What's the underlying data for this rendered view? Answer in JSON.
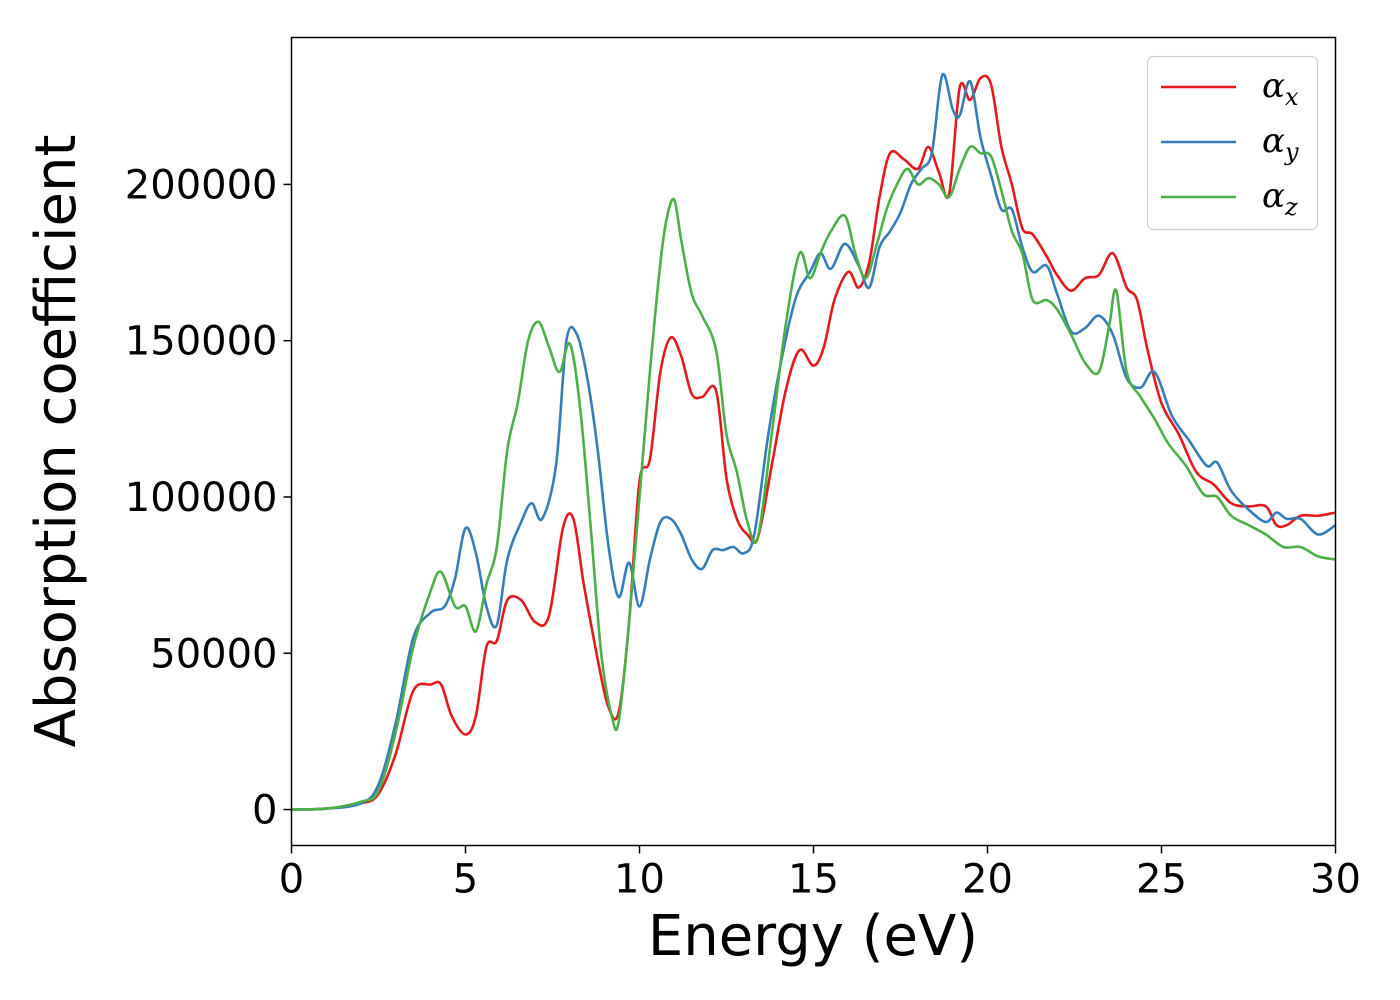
{
  "chart_data": {
    "type": "line",
    "title": "",
    "xlabel": "Energy (eV)",
    "ylabel": "Absorption coefficient",
    "xlim": [
      0,
      30
    ],
    "ylim": [
      -11500,
      247000
    ],
    "xticks": [
      0,
      5,
      10,
      15,
      20,
      25,
      30
    ],
    "yticks": [
      0,
      50000,
      100000,
      150000,
      200000
    ],
    "grid": false,
    "legend_position": "top-right",
    "series": [
      {
        "name": "α",
        "subscript": "x",
        "color": "#e41a1c",
        "x": [
          0,
          1,
          2,
          2.5,
          3,
          3.5,
          4,
          4.3,
          4.6,
          5,
          5.3,
          5.6,
          5.9,
          6.2,
          6.6,
          7,
          7.4,
          7.8,
          8.1,
          8.4,
          8.8,
          9.1,
          9.4,
          9.7,
          10,
          10.3,
          10.6,
          10.9,
          11.2,
          11.5,
          11.8,
          12.2,
          12.5,
          12.8,
          13.1,
          13.4,
          13.8,
          14.2,
          14.6,
          15,
          15.3,
          15.6,
          16,
          16.3,
          16.6,
          16.9,
          17.2,
          17.6,
          18,
          18.3,
          18.6,
          18.9,
          19.2,
          19.5,
          19.8,
          20.1,
          20.4,
          20.7,
          21,
          21.3,
          21.7,
          22,
          22.4,
          22.8,
          23.2,
          23.6,
          24,
          24.3,
          24.6,
          25,
          25.5,
          26,
          26.5,
          27,
          27.5,
          28,
          28.3,
          28.6,
          29,
          29.5,
          30
        ],
        "y": [
          0,
          300,
          2000,
          5000,
          18000,
          38000,
          40000,
          40000,
          30000,
          24000,
          30000,
          52000,
          54000,
          67000,
          67000,
          60000,
          62000,
          90000,
          93000,
          72000,
          48000,
          33000,
          31000,
          60000,
          105000,
          112000,
          140000,
          151000,
          145000,
          133000,
          132000,
          134000,
          106000,
          93000,
          88000,
          87000,
          110000,
          134000,
          147000,
          142000,
          148000,
          163000,
          172000,
          167000,
          175000,
          196000,
          210000,
          208000,
          205000,
          212000,
          204000,
          197000,
          231000,
          227000,
          234000,
          232000,
          212000,
          200000,
          186000,
          184000,
          177000,
          171000,
          166000,
          170000,
          171000,
          178000,
          167000,
          163000,
          147000,
          130000,
          120000,
          108000,
          104000,
          98000,
          97000,
          97000,
          91000,
          91000,
          94000,
          94000,
          95000
        ]
      },
      {
        "name": "α",
        "subscript": "y",
        "color": "#377eb8",
        "x": [
          0,
          1,
          2,
          2.5,
          3,
          3.5,
          4,
          4.4,
          4.7,
          5,
          5.3,
          5.6,
          5.9,
          6.2,
          6.6,
          6.9,
          7.2,
          7.6,
          7.9,
          8.2,
          8.5,
          8.8,
          9.1,
          9.4,
          9.7,
          10,
          10.3,
          10.6,
          10.9,
          11.2,
          11.5,
          11.8,
          12.1,
          12.4,
          12.7,
          13,
          13.3,
          13.7,
          14.1,
          14.5,
          14.9,
          15.2,
          15.5,
          15.9,
          16.3,
          16.6,
          16.9,
          17.2,
          17.5,
          17.8,
          18.1,
          18.4,
          18.7,
          19,
          19.2,
          19.5,
          19.8,
          20.1,
          20.4,
          20.7,
          21,
          21.3,
          21.7,
          22,
          22.4,
          22.8,
          23.2,
          23.6,
          24,
          24.4,
          24.8,
          25.3,
          25.8,
          26.3,
          26.6,
          27,
          27.5,
          28,
          28.3,
          28.6,
          29,
          29.5,
          30
        ],
        "y": [
          0,
          300,
          2000,
          8000,
          28000,
          55000,
          63000,
          65000,
          74000,
          90000,
          82000,
          65000,
          59000,
          80000,
          92000,
          98000,
          93000,
          110000,
          150000,
          152000,
          138000,
          115000,
          85000,
          68000,
          79000,
          65000,
          80000,
          92000,
          93000,
          88000,
          80000,
          77000,
          83000,
          83000,
          84000,
          82000,
          88000,
          120000,
          145000,
          164000,
          172000,
          178000,
          173000,
          181000,
          174000,
          167000,
          180000,
          185000,
          191000,
          200000,
          205000,
          210000,
          235000,
          224000,
          222000,
          233000,
          215000,
          203000,
          192000,
          192000,
          180000,
          172000,
          174000,
          165000,
          153000,
          154000,
          158000,
          152000,
          138000,
          135000,
          140000,
          126000,
          118000,
          110000,
          111000,
          102000,
          96000,
          92000,
          95000,
          93000,
          93000,
          88000,
          91000
        ]
      },
      {
        "name": "α",
        "subscript": "z",
        "color": "#4daf4a",
        "x": [
          0,
          1,
          2,
          2.5,
          3,
          3.5,
          4,
          4.3,
          4.7,
          5,
          5.3,
          5.6,
          5.9,
          6.2,
          6.5,
          6.8,
          7.1,
          7.4,
          7.7,
          8,
          8.3,
          8.6,
          8.9,
          9.2,
          9.4,
          9.7,
          10,
          10.3,
          10.6,
          10.8,
          11,
          11.2,
          11.5,
          11.8,
          12.2,
          12.5,
          12.8,
          13.1,
          13.4,
          13.8,
          14.2,
          14.6,
          14.9,
          15.2,
          15.5,
          15.9,
          16.2,
          16.5,
          16.8,
          17.1,
          17.4,
          17.7,
          18,
          18.3,
          18.6,
          18.9,
          19.2,
          19.5,
          19.8,
          20.1,
          20.4,
          20.7,
          21,
          21.3,
          21.7,
          22,
          22.4,
          22.8,
          23.2,
          23.5,
          23.7,
          24,
          24.4,
          24.8,
          25.2,
          25.7,
          26.2,
          26.6,
          27,
          27.5,
          28,
          28.5,
          29,
          29.5,
          30
        ],
        "y": [
          0,
          300,
          2500,
          6000,
          25000,
          52000,
          70000,
          76000,
          65000,
          65000,
          57000,
          72000,
          84000,
          115000,
          130000,
          150000,
          156000,
          148000,
          140000,
          149000,
          128000,
          90000,
          50000,
          30000,
          28000,
          60000,
          100000,
          140000,
          175000,
          190000,
          195000,
          182000,
          165000,
          158000,
          147000,
          120000,
          108000,
          92000,
          87000,
          120000,
          155000,
          178000,
          170000,
          178000,
          185000,
          190000,
          178000,
          170000,
          180000,
          192000,
          200000,
          205000,
          200000,
          202000,
          200000,
          196000,
          205000,
          212000,
          210000,
          209000,
          198000,
          185000,
          178000,
          163000,
          163000,
          160000,
          152000,
          143000,
          140000,
          155000,
          166000,
          140000,
          132000,
          125000,
          117000,
          110000,
          101000,
          100000,
          94000,
          91000,
          88000,
          84000,
          84000,
          81000,
          80000
        ]
      }
    ]
  }
}
